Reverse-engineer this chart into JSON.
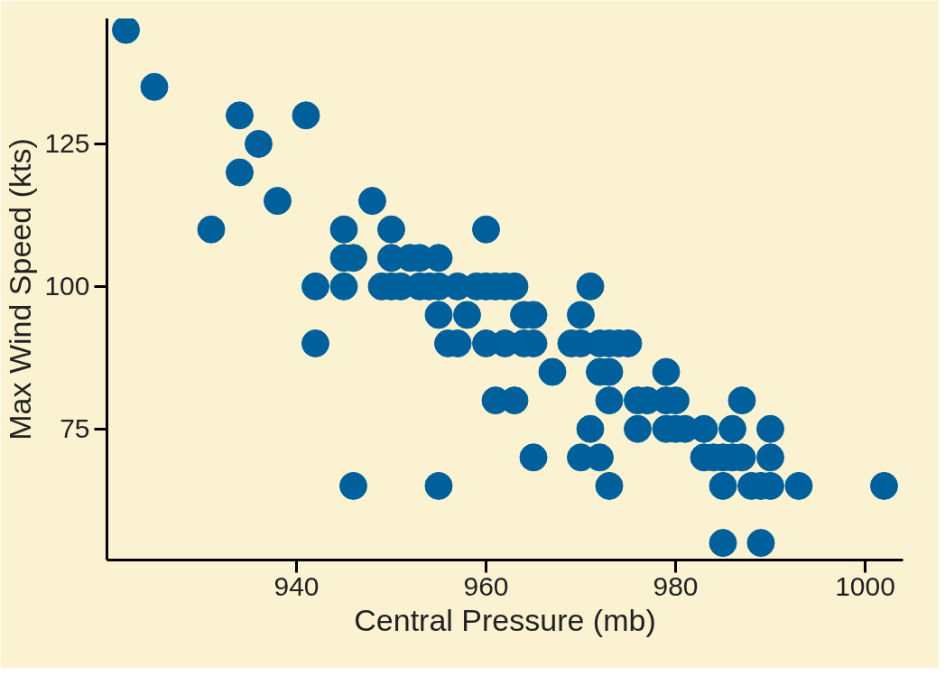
{
  "chart_data": {
    "type": "scatter",
    "xlabel": "Central Pressure (mb)",
    "ylabel": "Max Wind Speed (kts)",
    "xlim": [
      920,
      1004
    ],
    "ylim": [
      52,
      147
    ],
    "xticks": [
      940,
      960,
      980,
      1000
    ],
    "yticks": [
      75,
      100,
      125
    ],
    "grid": false,
    "marker": "circle",
    "series": [
      {
        "color": "#00609c",
        "x": [
          922,
          925,
          934,
          941,
          936,
          934,
          938,
          948,
          931,
          945,
          950,
          960,
          945,
          946,
          950,
          952,
          953,
          955,
          942,
          945,
          949,
          950,
          951,
          953,
          954,
          955,
          957,
          959,
          960,
          961,
          962,
          963,
          971,
          942,
          955,
          958,
          964,
          965,
          970,
          956,
          957,
          960,
          962,
          964,
          965,
          969,
          970,
          972,
          973,
          974,
          975,
          967,
          972,
          973,
          979,
          961,
          963,
          973,
          976,
          977,
          979,
          980,
          987,
          971,
          976,
          979,
          980,
          981,
          983,
          986,
          990,
          965,
          970,
          972,
          983,
          984,
          985,
          986,
          987,
          990,
          946,
          955,
          973,
          985,
          988,
          989,
          990,
          993,
          1002,
          985,
          989
        ],
        "values": [
          145,
          135,
          130,
          130,
          125,
          120,
          115,
          115,
          110,
          110,
          110,
          110,
          105,
          105,
          105,
          105,
          105,
          105,
          100,
          100,
          100,
          100,
          100,
          100,
          100,
          100,
          100,
          100,
          100,
          100,
          100,
          100,
          100,
          90,
          95,
          95,
          95,
          95,
          95,
          90,
          90,
          90,
          90,
          90,
          90,
          90,
          90,
          90,
          90,
          90,
          90,
          85,
          85,
          85,
          85,
          80,
          80,
          80,
          80,
          80,
          80,
          80,
          80,
          75,
          75,
          75,
          75,
          75,
          75,
          75,
          75,
          70,
          70,
          70,
          70,
          70,
          70,
          70,
          70,
          70,
          65,
          65,
          65,
          65,
          65,
          65,
          65,
          65,
          65,
          55,
          55
        ]
      }
    ]
  }
}
